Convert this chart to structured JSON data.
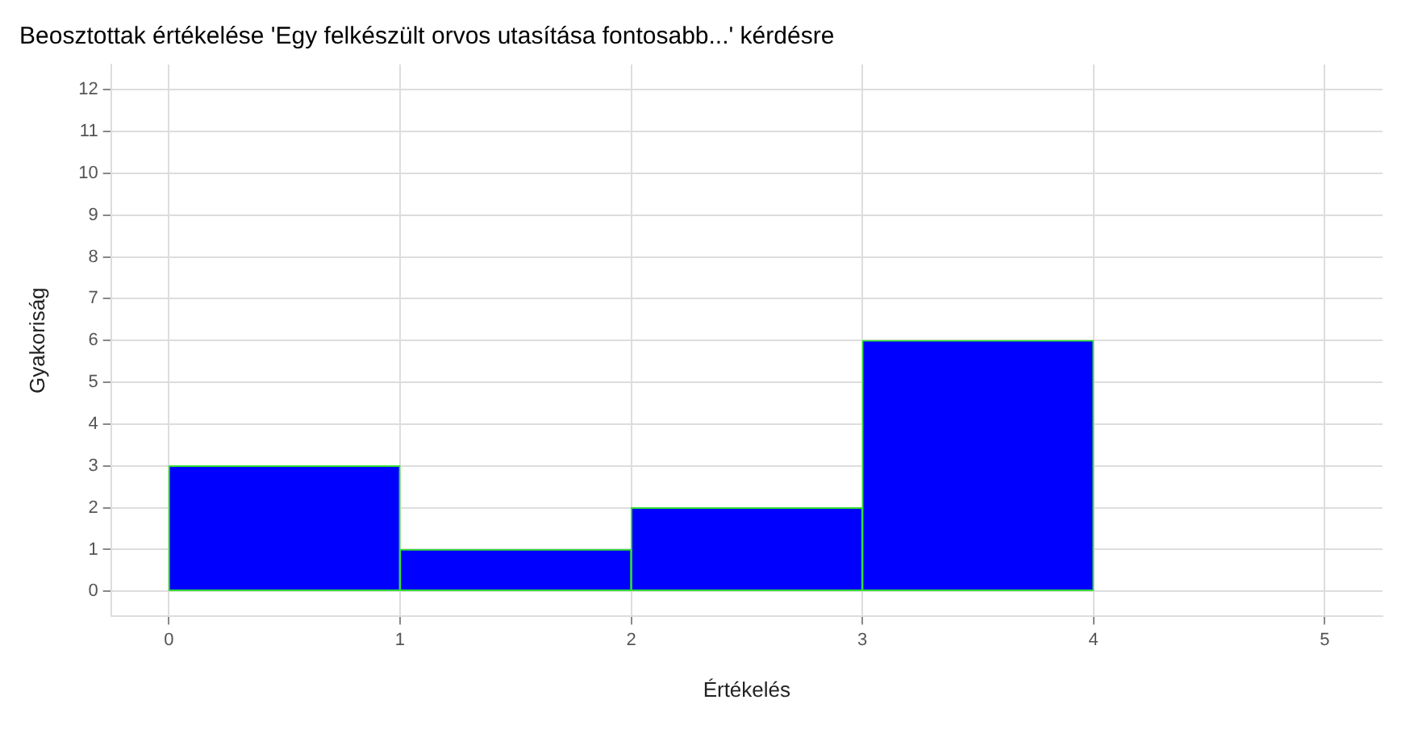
{
  "chart_data": {
    "type": "histogram",
    "title": "Beosztottak értékelése 'Egy felkészült orvos utasítása fontosabb...' kérdésre",
    "xlabel": "Értékelés",
    "ylabel": "Gyakoriság",
    "bins": [
      0,
      1,
      2,
      3,
      4,
      5
    ],
    "values": [
      3,
      1,
      2,
      6,
      0
    ],
    "color": "#0000ff",
    "xlim": [
      -0.25,
      5.25
    ],
    "xticks": [
      0,
      1,
      2,
      3,
      4,
      5
    ],
    "ylim": [
      -0.6,
      12.6
    ],
    "yticks": [
      0,
      1,
      2,
      3,
      4,
      5,
      6,
      7,
      8,
      9,
      10,
      11,
      12
    ],
    "grid": true,
    "legend": false
  }
}
